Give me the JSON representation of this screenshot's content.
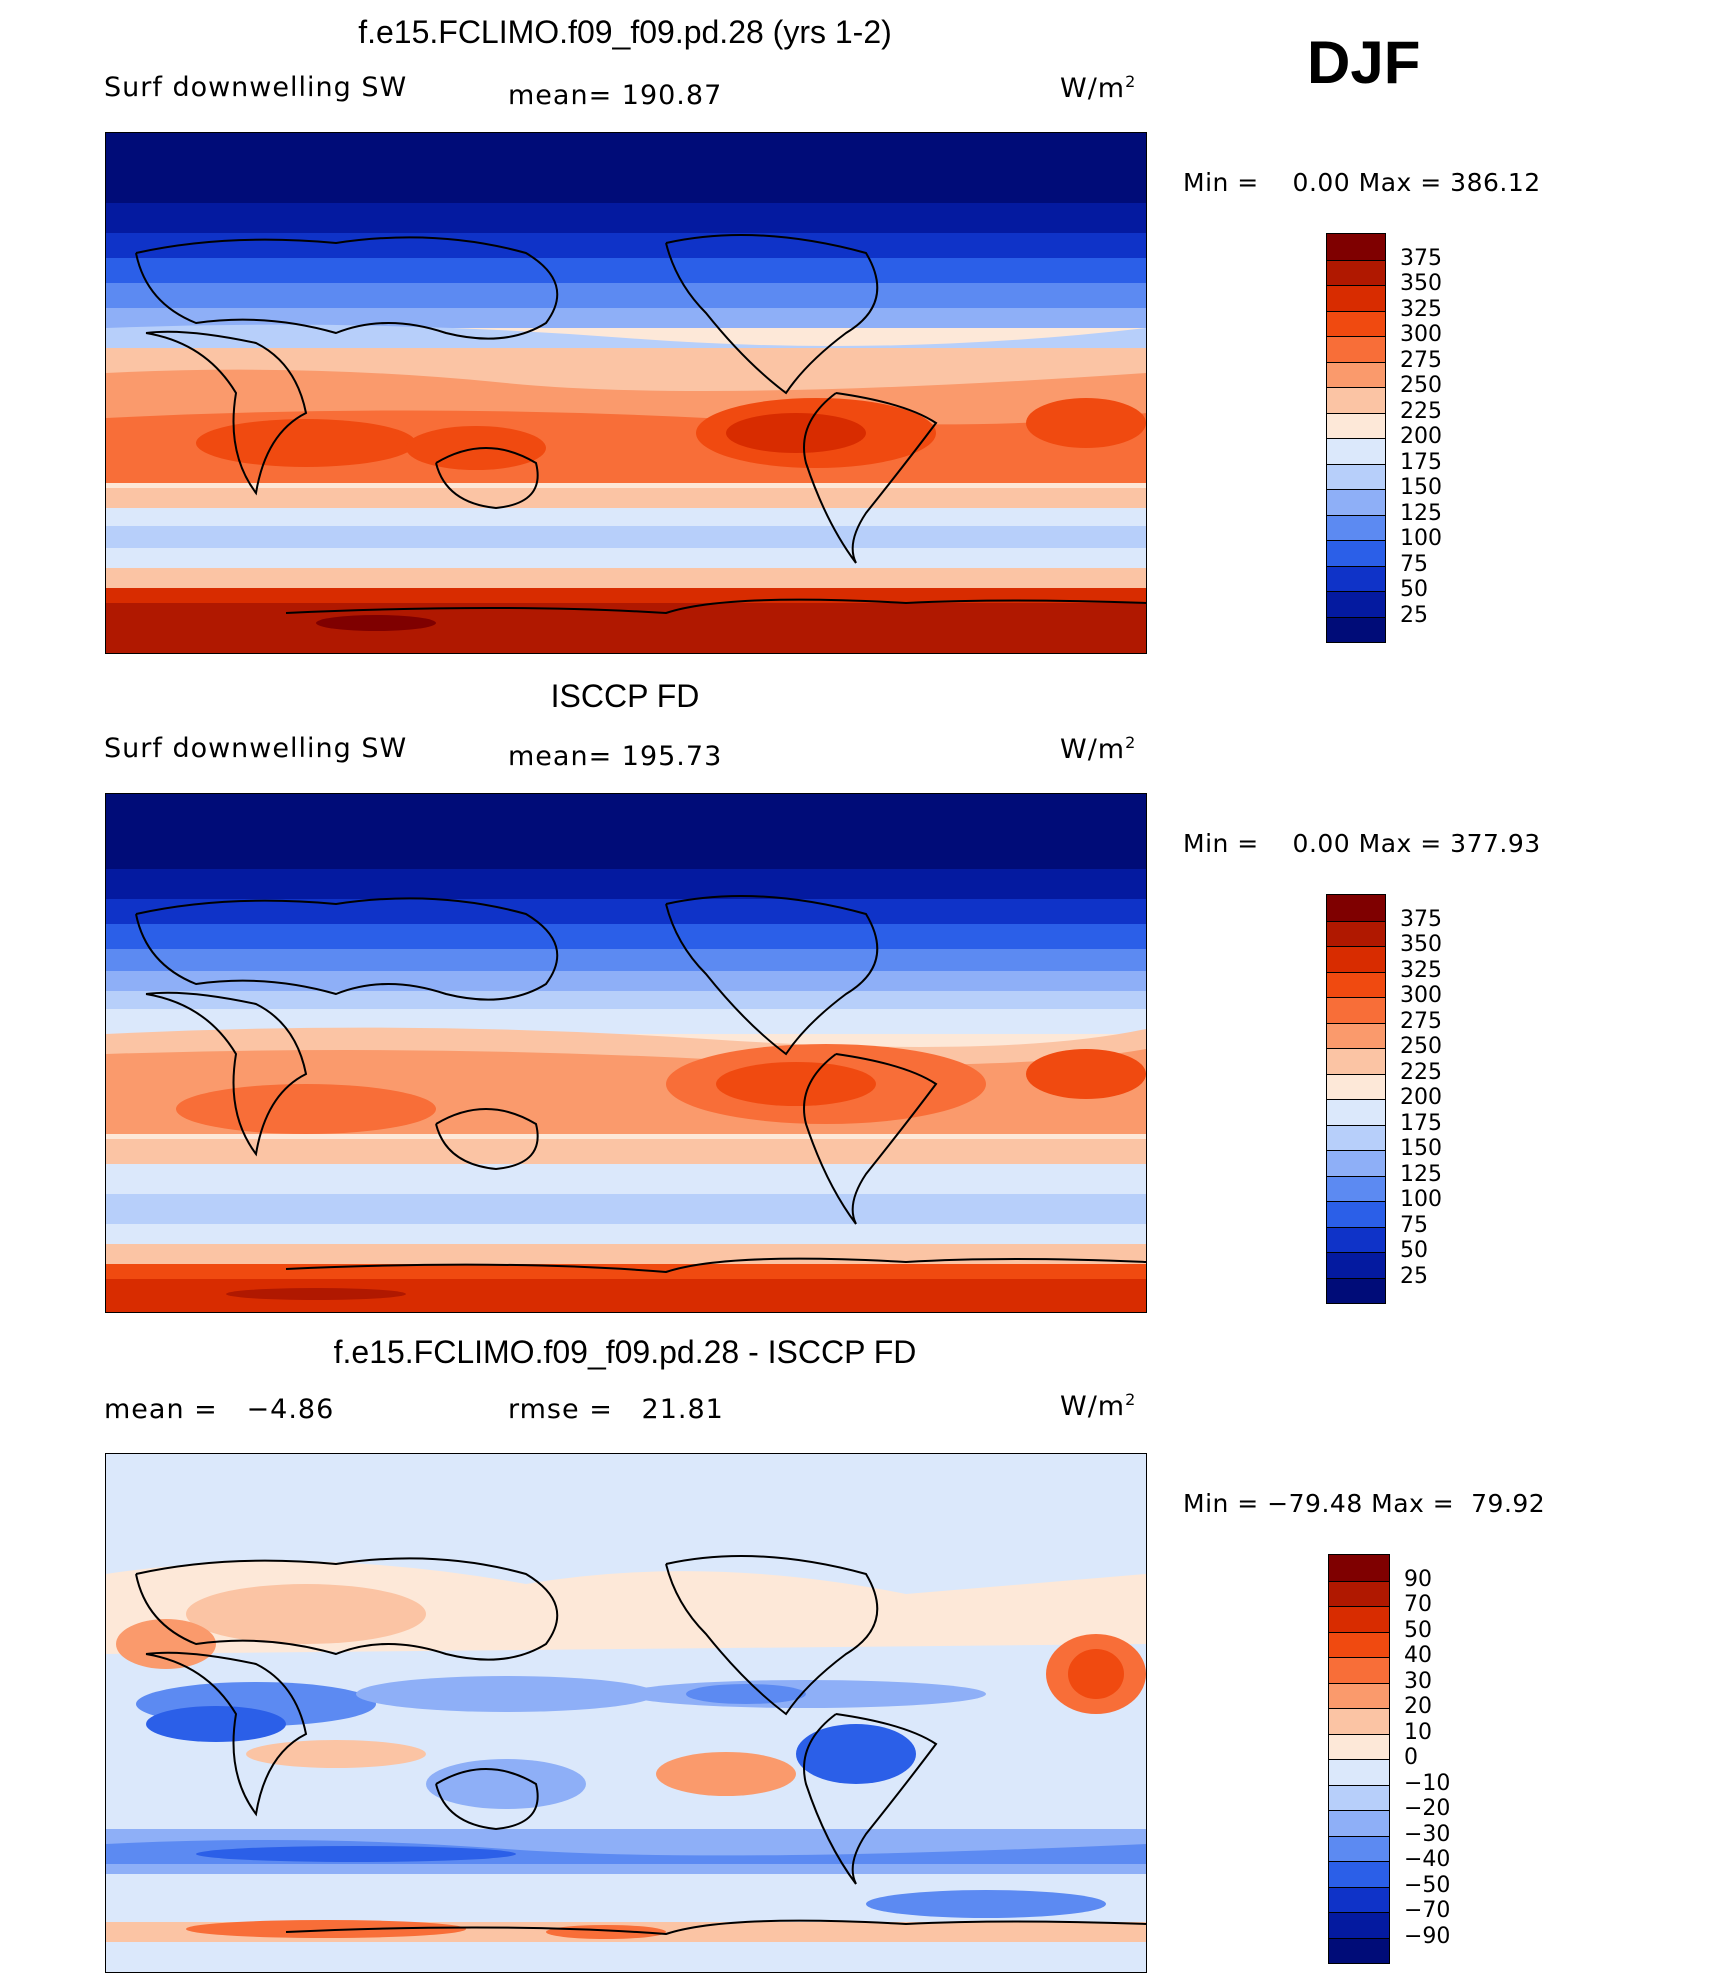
{
  "season": "DJF",
  "units_main": "W/m",
  "units_sup": "2",
  "panels": [
    {
      "title": "f.e15.FCLIMO.f09_f09.pd.28 (yrs 1-2)",
      "left_label": "Surf downwelling SW",
      "center_label": "mean= 190.87",
      "minmax": "Min =    0.00 Max = 386.12"
    },
    {
      "title": "ISCCP FD",
      "left_label": "Surf downwelling SW",
      "center_label": "mean= 195.73",
      "minmax": "Min =    0.00 Max = 377.93"
    },
    {
      "title": "f.e15.FCLIMO.f09_f09.pd.28 - ISCCP FD",
      "left_label": "mean =   −4.86",
      "center_label": "rmse =   21.81",
      "minmax": "Min = −79.48 Max =  79.92"
    }
  ],
  "colorbars": [
    {
      "labels": [
        "375",
        "350",
        "325",
        "300",
        "275",
        "250",
        "225",
        "200",
        "175",
        "150",
        "125",
        "100",
        "75",
        "50",
        "25"
      ],
      "colors": [
        "#7f0000",
        "#b01800",
        "#d82c00",
        "#f04a10",
        "#f86e38",
        "#fa9a6c",
        "#fbc4a4",
        "#fde8d8",
        "#dbe8fb",
        "#b7cffa",
        "#8eaff7",
        "#5c8af2",
        "#2b5fe8",
        "#0f33c8",
        "#041aa0",
        "#000c78"
      ]
    },
    {
      "labels": [
        "375",
        "350",
        "325",
        "300",
        "275",
        "250",
        "225",
        "200",
        "175",
        "150",
        "125",
        "100",
        "75",
        "50",
        "25"
      ],
      "colors": [
        "#7f0000",
        "#b01800",
        "#d82c00",
        "#f04a10",
        "#f86e38",
        "#fa9a6c",
        "#fbc4a4",
        "#fde8d8",
        "#dbe8fb",
        "#b7cffa",
        "#8eaff7",
        "#5c8af2",
        "#2b5fe8",
        "#0f33c8",
        "#041aa0",
        "#000c78"
      ]
    },
    {
      "labels": [
        "90",
        "70",
        "50",
        "40",
        "30",
        "20",
        "10",
        "0",
        "−10",
        "−20",
        "−30",
        "−40",
        "−50",
        "−70",
        "−90"
      ],
      "colors": [
        "#7f0000",
        "#b01800",
        "#d82c00",
        "#f04a10",
        "#f86e38",
        "#fa9a6c",
        "#fbc4a4",
        "#fde8d8",
        "#dbe8fb",
        "#b7cffa",
        "#8eaff7",
        "#5c8af2",
        "#2b5fe8",
        "#0f33c8",
        "#041aa0",
        "#000c78"
      ]
    }
  ],
  "chart_data": [
    {
      "type": "heatmap",
      "title": "f.e15.FCLIMO.f09_f09.pd.28 (yrs 1-2)",
      "variable": "Surf downwelling SW",
      "mean": 190.87,
      "min": 0.0,
      "max": 386.12,
      "levels": [
        25,
        50,
        75,
        100,
        125,
        150,
        175,
        200,
        225,
        250,
        275,
        300,
        325,
        350,
        375
      ]
    },
    {
      "type": "heatmap",
      "title": "ISCCP FD",
      "variable": "Surf downwelling SW",
      "mean": 195.73,
      "min": 0.0,
      "max": 377.93,
      "levels": [
        25,
        50,
        75,
        100,
        125,
        150,
        175,
        200,
        225,
        250,
        275,
        300,
        325,
        350,
        375
      ]
    },
    {
      "type": "heatmap",
      "title": "f.e15.FCLIMO.f09_f09.pd.28 - ISCCP FD",
      "mean": -4.86,
      "rmse": 21.81,
      "min": -79.48,
      "max": 79.92,
      "levels": [
        -90,
        -70,
        -50,
        -40,
        -30,
        -20,
        -10,
        0,
        10,
        20,
        30,
        40,
        50,
        70,
        90
      ]
    }
  ]
}
